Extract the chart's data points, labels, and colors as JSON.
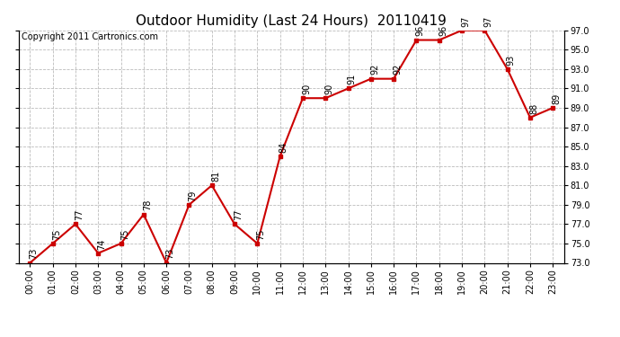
{
  "title": "Outdoor Humidity (Last 24 Hours)  20110419",
  "copyright_text": "Copyright 2011 Cartronics.com",
  "hours": [
    "00:00",
    "01:00",
    "02:00",
    "03:00",
    "04:00",
    "05:00",
    "06:00",
    "07:00",
    "08:00",
    "09:00",
    "10:00",
    "11:00",
    "12:00",
    "13:00",
    "14:00",
    "15:00",
    "16:00",
    "17:00",
    "18:00",
    "19:00",
    "20:00",
    "21:00",
    "22:00",
    "23:00"
  ],
  "values": [
    73,
    75,
    77,
    74,
    75,
    78,
    73,
    79,
    81,
    77,
    75,
    84,
    90,
    90,
    91,
    92,
    92,
    96,
    96,
    97,
    97,
    93,
    88,
    89
  ],
  "line_color": "#cc0000",
  "marker_color": "#cc0000",
  "background_color": "#ffffff",
  "grid_color": "#bbbbbb",
  "ylim_min": 73.0,
  "ylim_max": 97.0,
  "ytick_step": 2.0,
  "title_fontsize": 11,
  "annotation_fontsize": 7,
  "copyright_fontsize": 7,
  "tick_fontsize": 7
}
